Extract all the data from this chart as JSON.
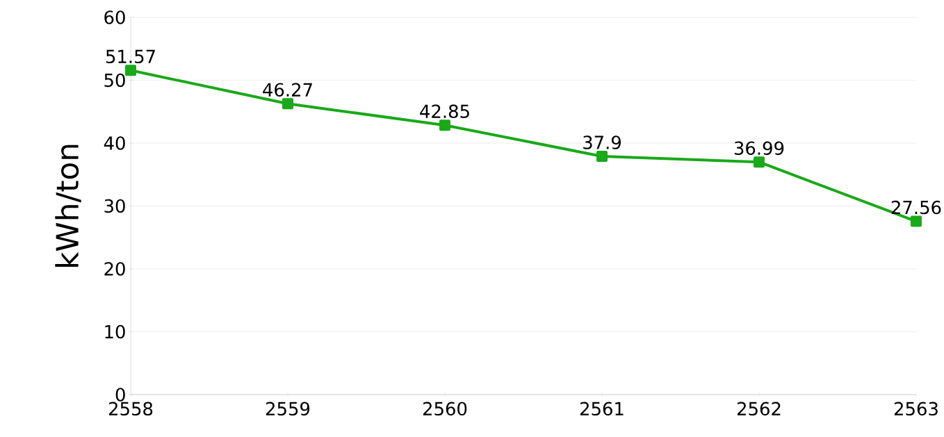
{
  "chart_data": {
    "type": "line",
    "ylabel": "kWh/ton",
    "categories": [
      "2558",
      "2559",
      "2560",
      "2561",
      "2562",
      "2563"
    ],
    "series": [
      {
        "color": "#19a919",
        "values": [
          51.57,
          46.27,
          42.85,
          37.9,
          36.99,
          27.56
        ]
      }
    ],
    "ylim": [
      0,
      60
    ],
    "yticks": [
      0,
      10,
      20,
      30,
      40,
      50,
      60
    ],
    "grid": "y",
    "marker": "square",
    "line_style": "solid",
    "data_labels": true
  }
}
